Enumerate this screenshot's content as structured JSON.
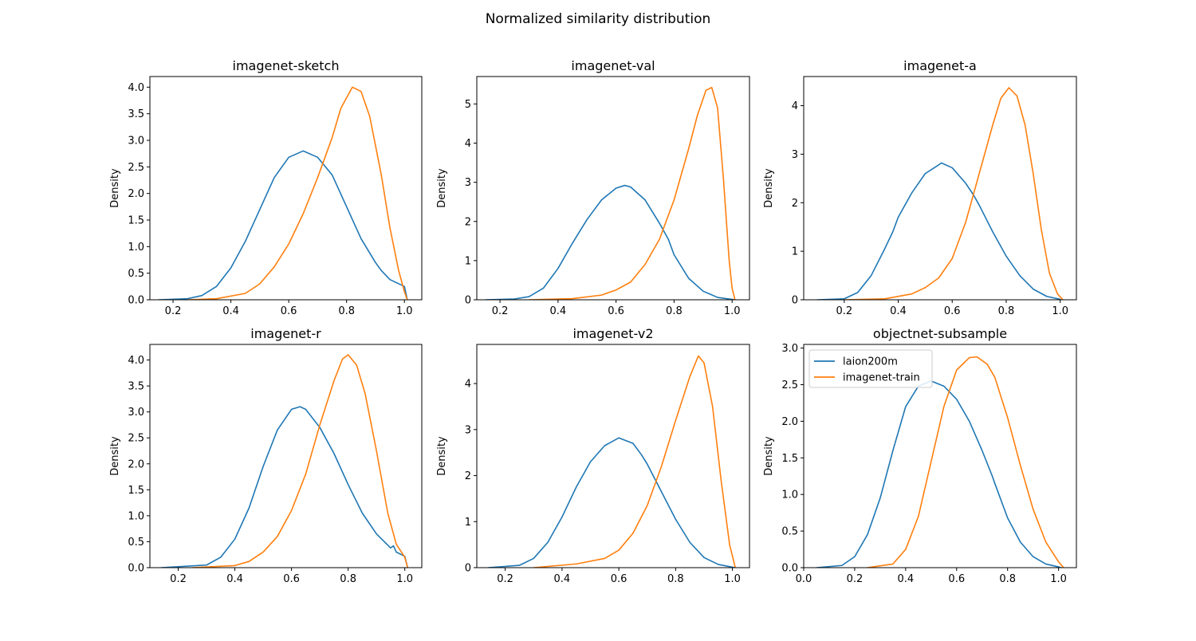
{
  "suptitle": "Normalized similarity distribution",
  "colors": {
    "laion200m": "#1f77b4",
    "imagenet-train": "#ff7f0e",
    "axis": "#000000"
  },
  "chart_data": [
    {
      "type": "line",
      "title": "imagenet-sketch",
      "xlabel": "",
      "ylabel": "Density",
      "xlim": [
        0.12,
        1.06
      ],
      "ylim": [
        0,
        4.2
      ],
      "xticks": [
        0.2,
        0.4,
        0.6,
        0.8,
        1.0
      ],
      "xtick_labels": [
        "0.2",
        "0.4",
        "0.6",
        "0.8",
        "1.0"
      ],
      "yticks": [
        0,
        0.5,
        1,
        1.5,
        2,
        2.5,
        3,
        3.5,
        4
      ],
      "ytick_labels": [
        "0.0",
        "0.5",
        "1.0",
        "1.5",
        "2.0",
        "2.5",
        "3.0",
        "3.5",
        "4.0"
      ],
      "series": [
        {
          "name": "laion200m",
          "color": "#1f77b4",
          "x": [
            0.15,
            0.25,
            0.3,
            0.35,
            0.4,
            0.45,
            0.5,
            0.55,
            0.6,
            0.65,
            0.7,
            0.75,
            0.8,
            0.85,
            0.9,
            0.92,
            0.95,
            1.0,
            1.01
          ],
          "y": [
            0,
            0.02,
            0.08,
            0.25,
            0.6,
            1.1,
            1.7,
            2.3,
            2.68,
            2.8,
            2.68,
            2.35,
            1.75,
            1.15,
            0.7,
            0.55,
            0.38,
            0.25,
            0
          ]
        },
        {
          "name": "imagenet-train",
          "color": "#ff7f0e",
          "x": [
            0.25,
            0.35,
            0.45,
            0.5,
            0.55,
            0.6,
            0.65,
            0.7,
            0.75,
            0.78,
            0.82,
            0.85,
            0.88,
            0.92,
            0.95,
            0.98,
            1.0,
            1.01
          ],
          "y": [
            0,
            0.02,
            0.12,
            0.3,
            0.62,
            1.05,
            1.62,
            2.3,
            3.05,
            3.6,
            4.0,
            3.92,
            3.45,
            2.35,
            1.35,
            0.55,
            0.15,
            0
          ]
        }
      ]
    },
    {
      "type": "line",
      "title": "imagenet-val",
      "xlabel": "",
      "ylabel": "Density",
      "xlim": [
        0.12,
        1.06
      ],
      "ylim": [
        0,
        5.7
      ],
      "xticks": [
        0.2,
        0.4,
        0.6,
        0.8,
        1.0
      ],
      "xtick_labels": [
        "0.2",
        "0.4",
        "0.6",
        "0.8",
        "1.0"
      ],
      "yticks": [
        0,
        1,
        2,
        3,
        4,
        5
      ],
      "ytick_labels": [
        "0",
        "1",
        "2",
        "3",
        "4",
        "5"
      ],
      "series": [
        {
          "name": "laion200m",
          "color": "#1f77b4",
          "x": [
            0.15,
            0.25,
            0.3,
            0.35,
            0.4,
            0.45,
            0.5,
            0.55,
            0.6,
            0.63,
            0.65,
            0.7,
            0.75,
            0.78,
            0.8,
            0.85,
            0.9,
            0.95,
            1.0,
            1.01
          ],
          "y": [
            0,
            0.02,
            0.08,
            0.3,
            0.8,
            1.45,
            2.05,
            2.55,
            2.85,
            2.92,
            2.88,
            2.55,
            1.95,
            1.55,
            1.15,
            0.55,
            0.22,
            0.06,
            0.01,
            0
          ]
        },
        {
          "name": "imagenet-train",
          "color": "#ff7f0e",
          "x": [
            0.3,
            0.45,
            0.55,
            0.6,
            0.65,
            0.7,
            0.75,
            0.8,
            0.85,
            0.88,
            0.91,
            0.93,
            0.95,
            0.97,
            0.99,
            1.0,
            1.01
          ],
          "y": [
            0,
            0.03,
            0.12,
            0.25,
            0.45,
            0.9,
            1.55,
            2.55,
            3.85,
            4.7,
            5.35,
            5.42,
            4.9,
            3.1,
            1.0,
            0.3,
            0
          ]
        }
      ]
    },
    {
      "type": "line",
      "title": "imagenet-a",
      "xlabel": "",
      "ylabel": "Density",
      "xlim": [
        0.05,
        1.06
      ],
      "ylim": [
        0,
        4.6
      ],
      "xticks": [
        0.2,
        0.4,
        0.6,
        0.8,
        1.0
      ],
      "xtick_labels": [
        "0.2",
        "0.4",
        "0.6",
        "0.8",
        "1.0"
      ],
      "yticks": [
        0,
        1,
        2,
        3,
        4
      ],
      "ytick_labels": [
        "0",
        "1",
        "2",
        "3",
        "4"
      ],
      "series": [
        {
          "name": "laion200m",
          "color": "#1f77b4",
          "x": [
            0.1,
            0.2,
            0.25,
            0.3,
            0.35,
            0.38,
            0.4,
            0.45,
            0.5,
            0.55,
            0.56,
            0.6,
            0.65,
            0.68,
            0.7,
            0.75,
            0.8,
            0.85,
            0.9,
            0.95,
            1.0
          ],
          "y": [
            0,
            0.02,
            0.15,
            0.5,
            1.05,
            1.4,
            1.7,
            2.2,
            2.6,
            2.78,
            2.82,
            2.72,
            2.4,
            2.15,
            1.95,
            1.4,
            0.9,
            0.5,
            0.22,
            0.07,
            0.01
          ]
        },
        {
          "name": "imagenet-train",
          "color": "#ff7f0e",
          "x": [
            0.2,
            0.35,
            0.45,
            0.5,
            0.55,
            0.6,
            0.65,
            0.7,
            0.75,
            0.78,
            0.81,
            0.84,
            0.87,
            0.9,
            0.93,
            0.96,
            0.99,
            1.01
          ],
          "y": [
            0,
            0.02,
            0.12,
            0.25,
            0.45,
            0.85,
            1.6,
            2.6,
            3.6,
            4.15,
            4.37,
            4.2,
            3.6,
            2.6,
            1.45,
            0.55,
            0.12,
            0
          ]
        }
      ]
    },
    {
      "type": "line",
      "title": "imagenet-r",
      "xlabel": "",
      "ylabel": "Density",
      "xlim": [
        0.1,
        1.06
      ],
      "ylim": [
        0,
        4.3
      ],
      "xticks": [
        0.2,
        0.4,
        0.6,
        0.8,
        1.0
      ],
      "xtick_labels": [
        "0.2",
        "0.4",
        "0.6",
        "0.8",
        "1.0"
      ],
      "yticks": [
        0,
        0.5,
        1,
        1.5,
        2,
        2.5,
        3,
        3.5,
        4
      ],
      "ytick_labels": [
        "0.0",
        "0.5",
        "1.0",
        "1.5",
        "2.0",
        "2.5",
        "3.0",
        "3.5",
        "4.0"
      ],
      "series": [
        {
          "name": "laion200m",
          "color": "#1f77b4",
          "x": [
            0.14,
            0.3,
            0.35,
            0.4,
            0.45,
            0.5,
            0.55,
            0.6,
            0.63,
            0.65,
            0.7,
            0.75,
            0.8,
            0.85,
            0.9,
            0.95,
            0.96,
            0.97,
            1.0,
            1.01
          ],
          "y": [
            0,
            0.05,
            0.2,
            0.55,
            1.15,
            1.95,
            2.65,
            3.05,
            3.1,
            3.05,
            2.7,
            2.2,
            1.6,
            1.05,
            0.65,
            0.38,
            0.42,
            0.3,
            0.22,
            0
          ]
        },
        {
          "name": "imagenet-train",
          "color": "#ff7f0e",
          "x": [
            0.25,
            0.4,
            0.45,
            0.5,
            0.55,
            0.6,
            0.65,
            0.7,
            0.75,
            0.78,
            0.8,
            0.83,
            0.86,
            0.9,
            0.94,
            0.97,
            1.0,
            1.01
          ],
          "y": [
            0,
            0.04,
            0.12,
            0.3,
            0.6,
            1.1,
            1.8,
            2.75,
            3.6,
            4.02,
            4.1,
            3.9,
            3.35,
            2.25,
            1.05,
            0.45,
            0.2,
            0
          ]
        }
      ]
    },
    {
      "type": "line",
      "title": "imagenet-v2",
      "xlabel": "",
      "ylabel": "Density",
      "xlim": [
        0.1,
        1.06
      ],
      "ylim": [
        0,
        4.85
      ],
      "xticks": [
        0.2,
        0.4,
        0.6,
        0.8,
        1.0
      ],
      "xtick_labels": [
        "0.2",
        "0.4",
        "0.6",
        "0.8",
        "1.0"
      ],
      "yticks": [
        0,
        1,
        2,
        3,
        4
      ],
      "ytick_labels": [
        "0",
        "1",
        "2",
        "3",
        "4"
      ],
      "series": [
        {
          "name": "laion200m",
          "color": "#1f77b4",
          "x": [
            0.14,
            0.25,
            0.3,
            0.35,
            0.4,
            0.45,
            0.5,
            0.55,
            0.6,
            0.65,
            0.68,
            0.7,
            0.75,
            0.8,
            0.85,
            0.9,
            0.95,
            1.0,
            1.01
          ],
          "y": [
            0,
            0.05,
            0.2,
            0.55,
            1.1,
            1.75,
            2.3,
            2.65,
            2.82,
            2.7,
            2.45,
            2.25,
            1.65,
            1.05,
            0.55,
            0.22,
            0.07,
            0.01,
            0
          ]
        },
        {
          "name": "imagenet-train",
          "color": "#ff7f0e",
          "x": [
            0.3,
            0.45,
            0.55,
            0.6,
            0.65,
            0.7,
            0.75,
            0.8,
            0.85,
            0.88,
            0.9,
            0.93,
            0.96,
            0.99,
            1.01
          ],
          "y": [
            0,
            0.08,
            0.2,
            0.38,
            0.75,
            1.35,
            2.2,
            3.2,
            4.15,
            4.6,
            4.45,
            3.5,
            1.9,
            0.5,
            0
          ]
        }
      ]
    },
    {
      "type": "line",
      "title": "objectnet-subsample",
      "xlabel": "",
      "ylabel": "Density",
      "xlim": [
        0.0,
        1.07
      ],
      "ylim": [
        0,
        3.05
      ],
      "xticks": [
        0.0,
        0.2,
        0.4,
        0.6,
        0.8,
        1.0
      ],
      "xtick_labels": [
        "0.0",
        "0.2",
        "0.4",
        "0.6",
        "0.8",
        "1.0"
      ],
      "yticks": [
        0,
        0.5,
        1,
        1.5,
        2,
        2.5,
        3
      ],
      "ytick_labels": [
        "0.0",
        "0.5",
        "1.0",
        "1.5",
        "2.0",
        "2.5",
        "3.0"
      ],
      "legend": {
        "placement": "upper-left",
        "entries": [
          "laion200m",
          "imagenet-train"
        ]
      },
      "series": [
        {
          "name": "laion200m",
          "color": "#1f77b4",
          "x": [
            0.05,
            0.15,
            0.2,
            0.25,
            0.3,
            0.35,
            0.4,
            0.45,
            0.5,
            0.55,
            0.6,
            0.65,
            0.7,
            0.74,
            0.75,
            0.8,
            0.85,
            0.9,
            0.95,
            1.0,
            1.01
          ],
          "y": [
            0,
            0.03,
            0.15,
            0.45,
            0.95,
            1.6,
            2.2,
            2.48,
            2.55,
            2.48,
            2.3,
            2.0,
            1.6,
            1.25,
            1.15,
            0.68,
            0.35,
            0.15,
            0.05,
            0.01,
            0
          ]
        },
        {
          "name": "imagenet-train",
          "color": "#ff7f0e",
          "x": [
            0.25,
            0.35,
            0.4,
            0.45,
            0.5,
            0.55,
            0.6,
            0.65,
            0.68,
            0.72,
            0.75,
            0.8,
            0.85,
            0.9,
            0.95,
            1.0,
            1.02
          ],
          "y": [
            0,
            0.05,
            0.25,
            0.7,
            1.45,
            2.2,
            2.7,
            2.87,
            2.88,
            2.78,
            2.6,
            2.05,
            1.4,
            0.8,
            0.35,
            0.08,
            0
          ]
        }
      ]
    }
  ]
}
